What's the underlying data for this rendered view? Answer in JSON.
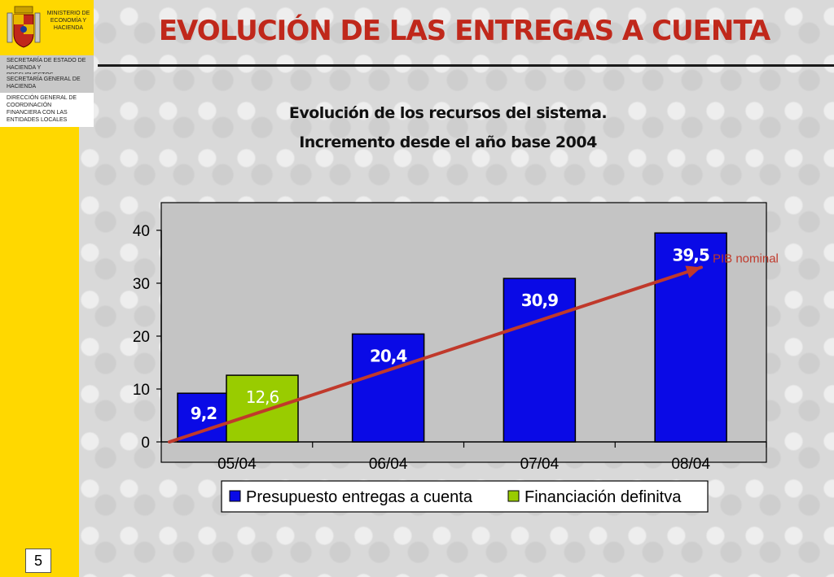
{
  "header": {
    "ministry": [
      "MINISTERIO DE",
      "ECONOMÍA Y",
      "HACIENDA"
    ],
    "org_1": "SECRETARÍA DE ESTADO DE HACIENDA Y PRESUPUESTOS",
    "org_2": "SECRETARÍA GENERAL DE HACIENDA",
    "org_3": "DIRECCIÓN GENERAL DE COORDINACIÓN FINANCIERA CON LAS ENTIDADES LOCALES",
    "slide_title": "EVOLUCIÓN DE LAS ENTREGAS A CUENTA",
    "page_number": "5"
  },
  "colors": {
    "accent_title": "#c0281b",
    "series_1": "#0a0ae6",
    "series_2": "#99cc00",
    "trend_line": "#c0392b",
    "yellow": "#ffd800"
  },
  "chart_data": {
    "type": "bar",
    "title": "Evolución de los recursos del sistema.",
    "subtitle": "Incremento desde el año base 2004",
    "categories": [
      "05/04",
      "06/04",
      "07/04",
      "08/04"
    ],
    "series": [
      {
        "name": "Presupuesto entregas a cuenta",
        "values": [
          9.2,
          20.4,
          30.9,
          39.5
        ],
        "labels": [
          "9,2",
          "20,4",
          "30,9",
          "39,5"
        ]
      },
      {
        "name": "Financiación definitva",
        "values": [
          12.6,
          null,
          null,
          null
        ],
        "labels": [
          "12,6",
          "",
          "",
          ""
        ]
      }
    ],
    "y_ticks": [
      "0",
      "10",
      "20",
      "30",
      "40"
    ],
    "ylim": [
      0,
      40
    ],
    "grid": false,
    "legend": "bottom",
    "annotation": {
      "text": "PIB nominal",
      "line_from": {
        "x": 0,
        "y": 0
      },
      "line_to": {
        "x": 3,
        "y": 33
      }
    }
  }
}
